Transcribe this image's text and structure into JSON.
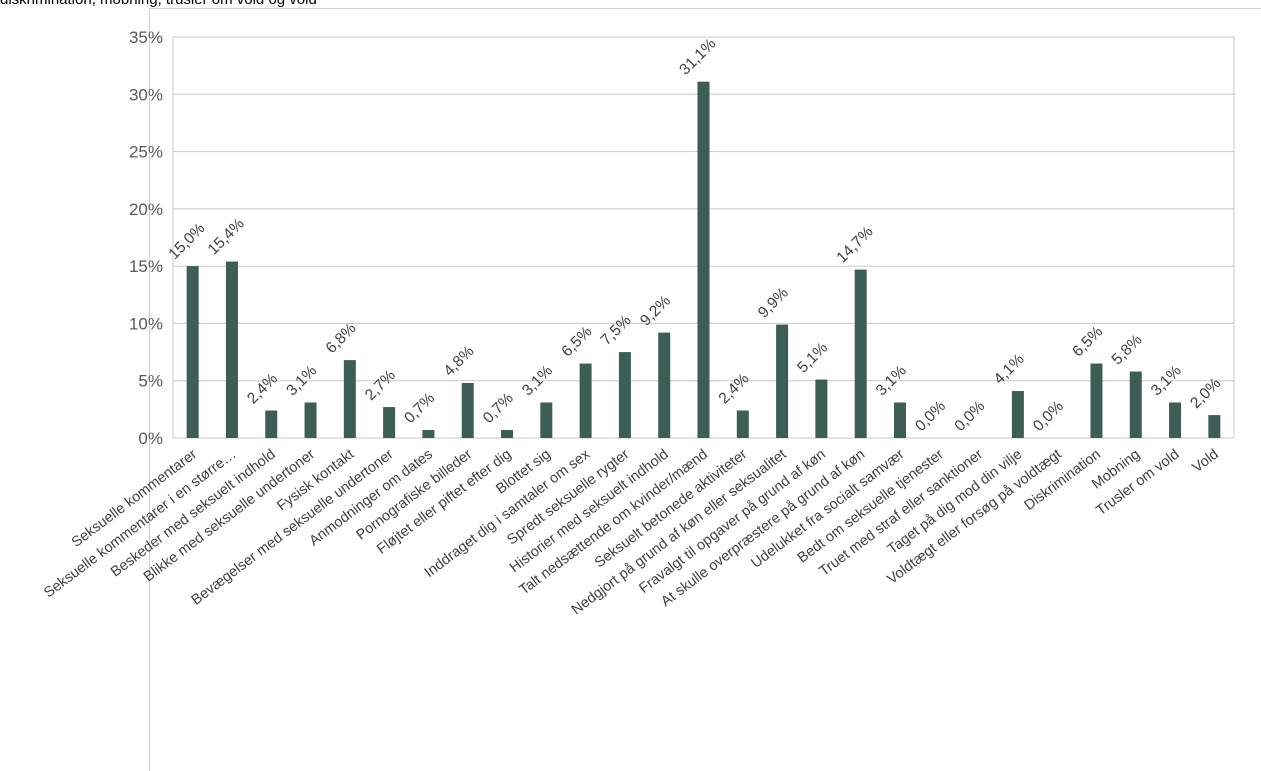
{
  "title": "diskrimination, mobning, trusler om vold og vold",
  "chart_data": {
    "type": "bar",
    "title": "diskrimination, mobning, trusler om vold og vold",
    "xlabel": "",
    "ylabel": "",
    "ylim": [
      0,
      35
    ],
    "yticks": [
      "0%",
      "5%",
      "10%",
      "15%",
      "20%",
      "25%",
      "30%",
      "35%"
    ],
    "grid": true,
    "legend": "none",
    "bar_color": "#3d5e57",
    "categories": [
      "Seksuelle kommentarer",
      "Seksuelle kommentarer i en større…",
      "Beskeder med seksuelt indhold",
      "Blikke med seksuelle undertoner",
      "Fysisk kontakt",
      "Bevægelser med seksuelle undertoner",
      "Anmodninger om dates",
      "Pornografiske billeder",
      "Fløjtet eller piftet efter dig",
      "Blottet sig",
      "Inddraget dig i samtaler om sex",
      "Spredt seksuelle rygter",
      "Historier med seksuelt indhold",
      "Talt nedsættende om kvinder/mænd",
      "Seksuelt betonede aktiviteter",
      "Nedgjort på grund af køn eller seksualitet",
      "Fravalgt til opgaver på grund af køn",
      "At skulle overpræstere på grund af køn",
      "Udelukket fra socialt samvær",
      "Bedt om seksuelle tjenester",
      "Truet med straf eller sanktioner",
      "Taget på dig mod din vilje",
      "Voldtægt eller forsøg på voldtægt",
      "Diskrimination",
      "Mobning",
      "Trusler om vold",
      "Vold"
    ],
    "values": [
      15.0,
      15.4,
      2.4,
      3.1,
      6.8,
      2.7,
      0.7,
      4.8,
      0.7,
      3.1,
      6.5,
      7.5,
      9.2,
      31.1,
      2.4,
      9.9,
      5.1,
      14.7,
      3.1,
      0.0,
      0.0,
      4.1,
      0.0,
      6.5,
      5.8,
      3.1,
      2.0
    ],
    "data_labels": [
      "15,0%",
      "15,4%",
      "2,4%",
      "3,1%",
      "6,8%",
      "2,7%",
      "0,7%",
      "4,8%",
      "0,7%",
      "3,1%",
      "6,5%",
      "7,5%",
      "9,2%",
      "31,1%",
      "2,4%",
      "9,9%",
      "5,1%",
      "14,7%",
      "3,1%",
      "0,0%",
      "0,0%",
      "4,1%",
      "0,0%",
      "6,5%",
      "5,8%",
      "3,1%",
      "2,0%"
    ]
  }
}
